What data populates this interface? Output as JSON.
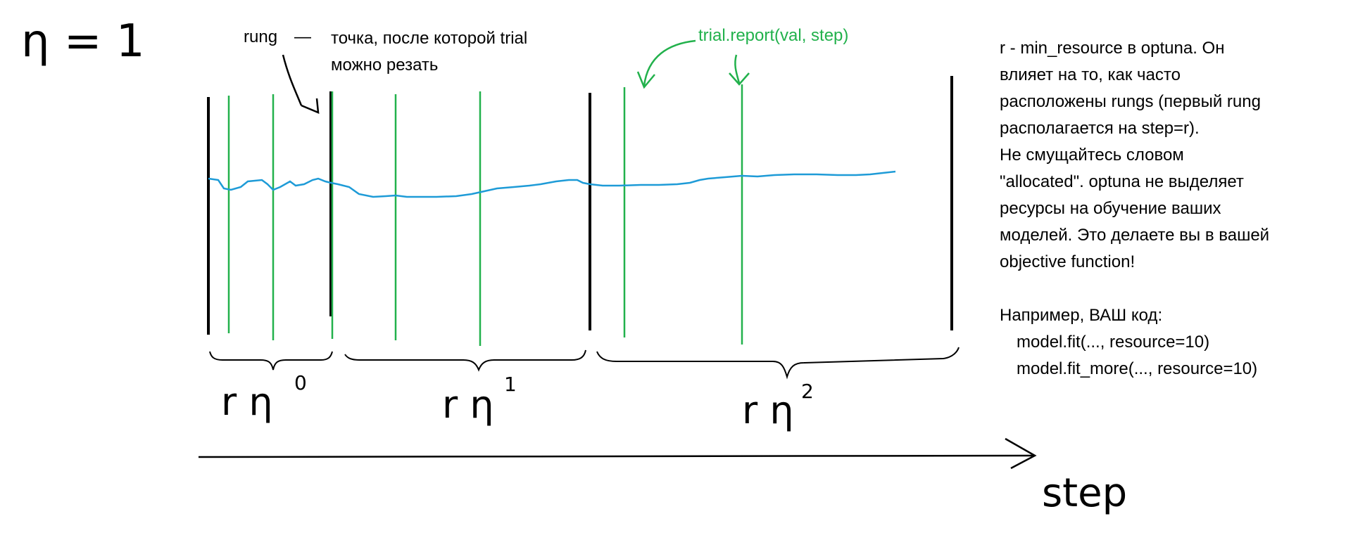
{
  "labels": {
    "eta": "η = 1",
    "rung": "rung",
    "rung_dash": "—",
    "rung_desc_1": "точка, после которой trial",
    "rung_desc_2": "можно резать",
    "report": "trial.report(val, step)",
    "axis": "step",
    "brace1": "r η",
    "brace1_exp": "0",
    "brace2": "r η",
    "brace2_exp": "1",
    "brace3": "r η",
    "brace3_exp": "2"
  },
  "note": {
    "lines": [
      "r - min_resource в optuna. Он",
      "влияет на то, как часто",
      "расположены rungs (первый rung",
      "располагается на step=r).",
      "Не смущайтесь словом",
      "\"allocated\". optuna не выделяет",
      "ресурсы на обучение ваших",
      "моделей. Это делаете вы в вашей",
      "objective function!"
    ],
    "example_title": "Например, ВАШ код:",
    "code": [
      "model.fit(..., resource=10)",
      "model.fit_more(..., resource=10)"
    ]
  },
  "colors": {
    "rung_line": "#000000",
    "report_line": "#22b14c",
    "curve": "#1e9bd7",
    "text": "#000000",
    "annotation": "#22b14c"
  }
}
